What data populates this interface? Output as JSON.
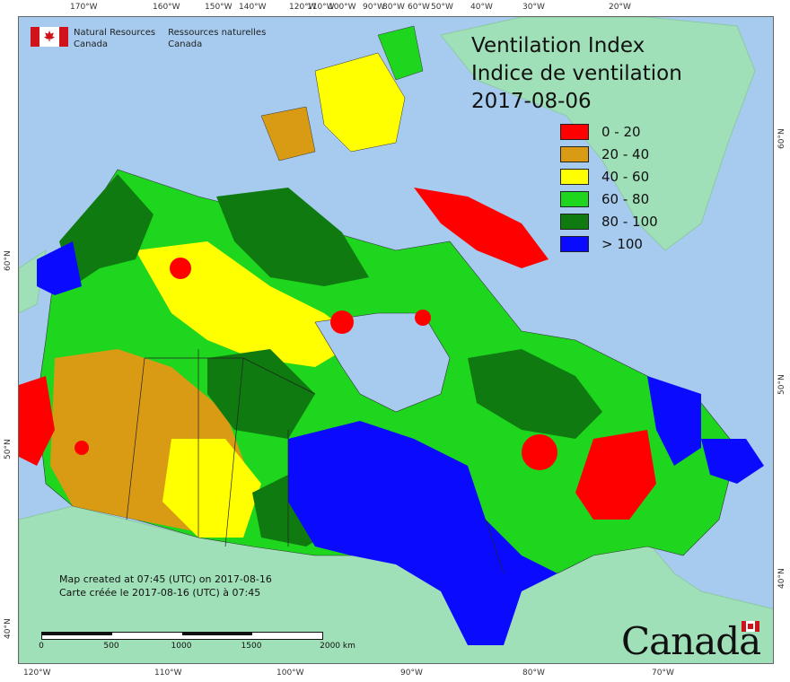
{
  "title": {
    "line1": "Ventilation Index",
    "line2": "Indice de ventilation",
    "date": "2017-08-06"
  },
  "agency": {
    "en_line1": "Natural Resources",
    "en_line2": "Canada",
    "fr_line1": "Ressources naturelles",
    "fr_line2": "Canada"
  },
  "legend": [
    {
      "label": "0 - 20",
      "color": "#ff0000"
    },
    {
      "label": "20 - 40",
      "color": "#d99a14"
    },
    {
      "label": "40 - 60",
      "color": "#ffff00"
    },
    {
      "label": "60 - 80",
      "color": "#1ed61e"
    },
    {
      "label": "80 - 100",
      "color": "#0f7a0f"
    },
    {
      "label": "> 100",
      "color": "#0a0aff"
    }
  ],
  "created": {
    "en": "Map created at 07:45 (UTC) on 2017-08-16",
    "fr": "Carte créée le 2017-08-16 (UTC) à 07:45"
  },
  "scale": {
    "labels": [
      "0",
      "500",
      "1000",
      "1500",
      "2000 km"
    ]
  },
  "wordmark": "Canada",
  "ticks": {
    "top": [
      "170°W",
      "160°W",
      "150°W",
      "140°W",
      "120°W",
      "110°W",
      "100°W",
      "90°W",
      "80°W",
      "60°W",
      "50°W",
      "40°W",
      "30°W",
      "20°W"
    ],
    "bottom": [
      "120°W",
      "110°W",
      "100°W",
      "90°W",
      "80°W",
      "70°W"
    ],
    "left": [
      "60°N",
      "50°N",
      "40°N"
    ],
    "right": [
      "60°N",
      "50°N",
      "40°N"
    ]
  },
  "colors": {
    "ocean": "#a6cbee",
    "foreign_land": "#9fe0b8",
    "water_body": "#a6cbee"
  }
}
